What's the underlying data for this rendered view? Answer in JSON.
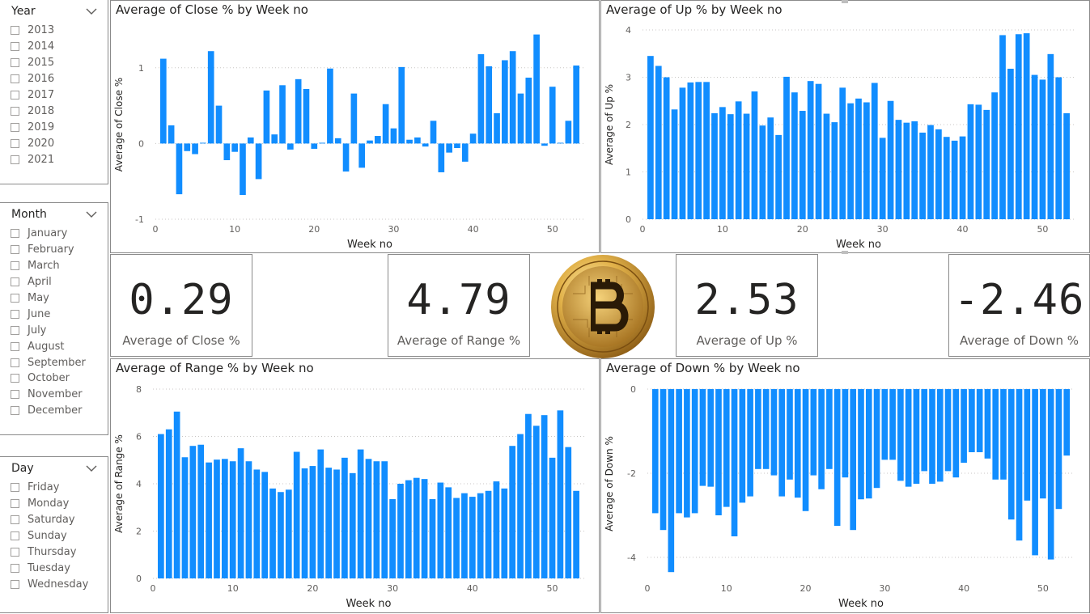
{
  "slicers": {
    "year": {
      "title": "Year",
      "items": [
        "2013",
        "2014",
        "2015",
        "2016",
        "2017",
        "2018",
        "2019",
        "2020",
        "2021"
      ]
    },
    "month": {
      "title": "Month",
      "items": [
        "January",
        "February",
        "March",
        "April",
        "May",
        "June",
        "July",
        "August",
        "September",
        "October",
        "November",
        "December"
      ]
    },
    "day": {
      "title": "Day",
      "items": [
        "Friday",
        "Monday",
        "Saturday",
        "Sunday",
        "Thursday",
        "Tuesday",
        "Wednesday"
      ]
    }
  },
  "kpis": {
    "close": {
      "value": "0.29",
      "label": "Average of Close %"
    },
    "range": {
      "value": "4.79",
      "label": "Average of Range %"
    },
    "up": {
      "value": "2.53",
      "label": "Average of Up %"
    },
    "down": {
      "value": "-2.46",
      "label": "Average of Down %"
    }
  },
  "colors": {
    "bar": "#118dff",
    "grid": "#c8c6c4",
    "axis_text": "#605e5c",
    "coin_gold": "#c8962a"
  },
  "icons": {
    "dropdown": "chevron-down-icon",
    "logo": "bitcoin-coin-icon"
  },
  "chart_data": [
    {
      "id": "close",
      "type": "bar",
      "title": "Average of Close % by Week no",
      "xlabel": "Week no",
      "ylabel": "Average of Close %",
      "ylim": [
        -1,
        1.5
      ],
      "yticks": [
        -1,
        0,
        1
      ],
      "xticks": [
        0,
        10,
        20,
        30,
        40,
        50
      ],
      "x": [
        1,
        2,
        3,
        4,
        5,
        6,
        7,
        8,
        9,
        10,
        11,
        12,
        13,
        14,
        15,
        16,
        17,
        18,
        19,
        20,
        21,
        22,
        23,
        24,
        25,
        26,
        27,
        28,
        29,
        30,
        31,
        32,
        33,
        34,
        35,
        36,
        37,
        38,
        39,
        40,
        41,
        42,
        43,
        44,
        45,
        46,
        47,
        48,
        49,
        50,
        51,
        52,
        53
      ],
      "values": [
        1.12,
        0.24,
        -0.67,
        -0.1,
        -0.14,
        0.01,
        1.22,
        0.5,
        -0.22,
        -0.11,
        -0.68,
        0.08,
        -0.47,
        0.7,
        0.12,
        0.77,
        -0.08,
        0.85,
        0.72,
        -0.07,
        0.01,
        0.99,
        0.07,
        -0.37,
        0.66,
        -0.32,
        0.04,
        0.1,
        0.52,
        0.2,
        1.01,
        0.05,
        0.08,
        -0.04,
        0.3,
        -0.38,
        -0.12,
        -0.06,
        -0.24,
        0.13,
        1.18,
        1.02,
        0.4,
        1.1,
        1.22,
        0.66,
        0.87,
        1.44,
        -0.03,
        0.75,
        0.01,
        0.3,
        1.03
      ]
    },
    {
      "id": "up",
      "type": "bar",
      "title": "Average of Up % by Week no",
      "xlabel": "Week no",
      "ylabel": "Average of Up %",
      "ylim": [
        0,
        4
      ],
      "yticks": [
        0,
        1,
        2,
        3,
        4
      ],
      "xticks": [
        0,
        10,
        20,
        30,
        40,
        50
      ],
      "x": [
        1,
        2,
        3,
        4,
        5,
        6,
        7,
        8,
        9,
        10,
        11,
        12,
        13,
        14,
        15,
        16,
        17,
        18,
        19,
        20,
        21,
        22,
        23,
        24,
        25,
        26,
        27,
        28,
        29,
        30,
        31,
        32,
        33,
        34,
        35,
        36,
        37,
        38,
        39,
        40,
        41,
        42,
        43,
        44,
        45,
        46,
        47,
        48,
        49,
        50,
        51,
        52,
        53
      ],
      "values": [
        3.45,
        3.24,
        3.0,
        2.32,
        2.78,
        2.89,
        2.9,
        2.9,
        2.24,
        2.37,
        2.22,
        2.49,
        2.23,
        2.7,
        1.98,
        2.15,
        1.78,
        3.01,
        2.68,
        2.29,
        2.92,
        2.86,
        2.23,
        2.05,
        2.78,
        2.45,
        2.55,
        2.47,
        2.88,
        1.72,
        2.5,
        2.1,
        2.04,
        2.07,
        1.83,
        1.99,
        1.9,
        1.74,
        1.66,
        1.75,
        2.43,
        2.42,
        2.31,
        2.68,
        3.89,
        3.18,
        3.91,
        3.93,
        3.05,
        2.95,
        3.49,
        3.0,
        2.24
      ]
    },
    {
      "id": "range",
      "type": "bar",
      "title": "Average of Range % by Week no",
      "xlabel": "Week no",
      "ylabel": "Average of Range %",
      "ylim": [
        0,
        8
      ],
      "yticks": [
        0,
        2,
        4,
        6,
        8
      ],
      "xticks": [
        0,
        10,
        20,
        30,
        40,
        50
      ],
      "x": [
        1,
        2,
        3,
        4,
        5,
        6,
        7,
        8,
        9,
        10,
        11,
        12,
        13,
        14,
        15,
        16,
        17,
        18,
        19,
        20,
        21,
        22,
        23,
        24,
        25,
        26,
        27,
        28,
        29,
        30,
        31,
        32,
        33,
        34,
        35,
        36,
        37,
        38,
        39,
        40,
        41,
        42,
        43,
        44,
        45,
        46,
        47,
        48,
        49,
        50,
        51,
        52,
        53
      ],
      "values": [
        6.1,
        6.3,
        7.05,
        5.12,
        5.6,
        5.65,
        4.9,
        5.02,
        5.05,
        4.95,
        5.5,
        4.95,
        4.6,
        4.5,
        3.8,
        3.65,
        3.75,
        5.35,
        4.65,
        4.75,
        5.45,
        4.68,
        4.6,
        5.1,
        4.45,
        5.45,
        5.05,
        4.95,
        4.95,
        3.35,
        4.0,
        4.15,
        4.25,
        4.2,
        3.35,
        4.05,
        3.85,
        3.4,
        3.6,
        3.45,
        3.6,
        3.7,
        4.1,
        3.8,
        5.6,
        6.1,
        6.95,
        6.45,
        6.9,
        5.1,
        7.1,
        5.55,
        3.7
      ]
    },
    {
      "id": "down",
      "type": "bar",
      "title": "Average of Down % by Week no",
      "xlabel": "Week no",
      "ylabel": "Average of Down %",
      "ylim": [
        -4.5,
        0
      ],
      "yticks": [
        -4,
        -2,
        0
      ],
      "xticks": [
        0,
        10,
        20,
        30,
        40,
        50
      ],
      "x": [
        1,
        2,
        3,
        4,
        5,
        6,
        7,
        8,
        9,
        10,
        11,
        12,
        13,
        14,
        15,
        16,
        17,
        18,
        19,
        20,
        21,
        22,
        23,
        24,
        25,
        26,
        27,
        28,
        29,
        30,
        31,
        32,
        33,
        34,
        35,
        36,
        37,
        38,
        39,
        40,
        41,
        42,
        43,
        44,
        45,
        46,
        47,
        48,
        49,
        50,
        51,
        52,
        53
      ],
      "values": [
        -2.95,
        -3.35,
        -4.35,
        -2.95,
        -3.05,
        -2.95,
        -2.3,
        -2.32,
        -3.0,
        -2.8,
        -3.5,
        -2.7,
        -2.55,
        -1.9,
        -1.9,
        -2.05,
        -2.55,
        -2.15,
        -2.58,
        -2.9,
        -2.05,
        -2.38,
        -1.9,
        -3.25,
        -2.1,
        -3.35,
        -2.62,
        -2.6,
        -2.35,
        -1.68,
        -1.68,
        -2.18,
        -2.32,
        -2.25,
        -1.95,
        -2.25,
        -2.2,
        -1.95,
        -2.1,
        -1.75,
        -1.5,
        -1.5,
        -1.65,
        -2.15,
        -2.15,
        -3.1,
        -3.6,
        -2.65,
        -3.95,
        -2.6,
        -4.05,
        -2.85,
        -1.58
      ]
    }
  ]
}
